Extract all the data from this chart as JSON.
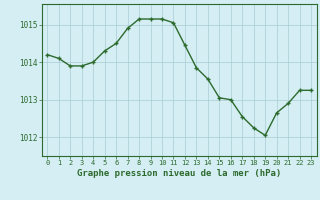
{
  "x": [
    0,
    1,
    2,
    3,
    4,
    5,
    6,
    7,
    8,
    9,
    10,
    11,
    12,
    13,
    14,
    15,
    16,
    17,
    18,
    19,
    20,
    21,
    22,
    23
  ],
  "y": [
    1014.2,
    1014.1,
    1013.9,
    1013.9,
    1014.0,
    1014.3,
    1014.5,
    1014.9,
    1015.15,
    1015.15,
    1015.15,
    1015.05,
    1014.45,
    1013.85,
    1013.55,
    1013.05,
    1013.0,
    1012.55,
    1012.25,
    1012.05,
    1012.65,
    1012.9,
    1013.25,
    1013.25
  ],
  "line_color": "#2d6a2d",
  "marker": "+",
  "marker_size": 3,
  "line_width": 1.0,
  "bg_color": "#d4eef4",
  "grid_color": "#aaccd4",
  "axis_label_color": "#2d6a2d",
  "tick_label_color": "#2d6a2d",
  "xlabel": "Graphe pression niveau de la mer (hPa)",
  "xlabel_fontsize": 6.5,
  "ytick_labels": [
    "1012",
    "1013",
    "1014",
    "1015"
  ],
  "ytick_values": [
    1012,
    1013,
    1014,
    1015
  ],
  "ylim": [
    1011.5,
    1015.55
  ],
  "xlim": [
    -0.5,
    23.5
  ],
  "xtick_values": [
    0,
    1,
    2,
    3,
    4,
    5,
    6,
    7,
    8,
    9,
    10,
    11,
    12,
    13,
    14,
    15,
    16,
    17,
    18,
    19,
    20,
    21,
    22,
    23
  ],
  "spine_color": "#2d6a2d",
  "tick_fontsize": 5.0,
  "ytick_fontsize": 5.5
}
